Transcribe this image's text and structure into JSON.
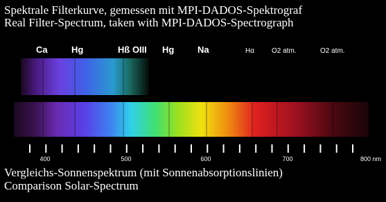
{
  "header": {
    "lines": [
      "Spektrale Filterkurve, gemessen mit MPI-DADOS-Spektrograf",
      "Real Filter-Spectrum, taken with MPI-DADOS-Spectrograph"
    ]
  },
  "lines": [
    "Ca",
    "Hg",
    "Hß OIII",
    "Hg",
    "Na",
    "Hα",
    "O2 atm.",
    "O2 atm."
  ],
  "axis": {
    "ticks": [
      "400",
      "500",
      "600",
      "700",
      "800 nm"
    ]
  },
  "footer": {
    "lines": [
      "Vergleichs-Sonnenspektrum (mit Sonnenabsorptionslinien)",
      "Comparison Solar-Spectrum"
    ]
  }
}
